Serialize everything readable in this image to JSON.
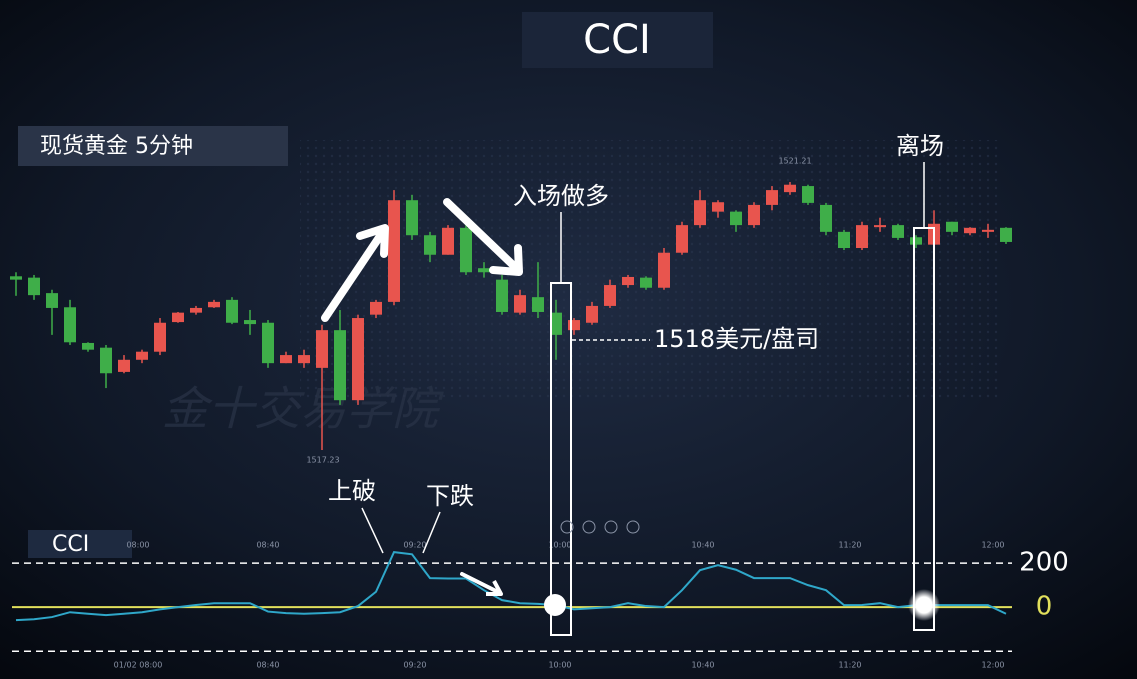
{
  "chart_data": [
    {
      "type": "candlestick",
      "title": "CCI",
      "subtitle": "现货黄金 5分钟",
      "open": [
        1519.81,
        1519.79,
        1519.56,
        1519.35,
        1518.82,
        1518.75,
        1518.39,
        1518.57,
        1518.69,
        1519.13,
        1519.27,
        1519.35,
        1519.46,
        1519.16,
        1519.12,
        1518.52,
        1518.52,
        1518.45,
        1519.01,
        1517.97,
        1519.24,
        1519.43,
        1520.94,
        1520.42,
        1520.13,
        1520.53,
        1519.93,
        1519.76,
        1519.27,
        1519.5,
        1519.27,
        1519.01,
        1519.12,
        1519.37,
        1519.68,
        1519.79,
        1519.64,
        1520.16,
        1520.57,
        1520.77,
        1520.77,
        1520.57,
        1520.87,
        1521.06,
        1521.15,
        1520.87,
        1520.47,
        1520.23,
        1520.54,
        1520.57,
        1520.39,
        1520.28,
        1520.62,
        1520.45,
        1520.47,
        1520.53
      ],
      "high": [
        1519.87,
        1519.83,
        1519.61,
        1519.46,
        1518.83,
        1518.79,
        1518.64,
        1518.72,
        1519.19,
        1519.28,
        1519.37,
        1519.46,
        1519.5,
        1519.31,
        1519.16,
        1518.69,
        1518.72,
        1519.09,
        1519.31,
        1519.24,
        1519.46,
        1521.09,
        1521.02,
        1520.47,
        1520.57,
        1520.57,
        1520.02,
        1519.83,
        1519.61,
        1520.02,
        1519.46,
        1519.19,
        1519.43,
        1519.76,
        1519.83,
        1519.81,
        1520.23,
        1520.62,
        1521.09,
        1520.94,
        1520.79,
        1520.91,
        1521.15,
        1521.21,
        1521.17,
        1520.9,
        1520.5,
        1520.62,
        1520.68,
        1520.59,
        1520.42,
        1520.79,
        1520.62,
        1520.54,
        1520.59,
        1520.54
      ],
      "low": [
        1519.52,
        1519.46,
        1518.94,
        1518.79,
        1518.69,
        1518.15,
        1518.37,
        1518.52,
        1518.64,
        1519.12,
        1519.24,
        1519.34,
        1519.1,
        1518.94,
        1518.45,
        1518.52,
        1518.45,
        1517.23,
        1517.9,
        1517.9,
        1519.19,
        1519.38,
        1520.35,
        1520.02,
        1520.13,
        1519.83,
        1519.79,
        1519.24,
        1519.24,
        1519.19,
        1518.57,
        1518.94,
        1519.09,
        1519.34,
        1519.64,
        1519.61,
        1519.61,
        1520.13,
        1520.53,
        1520.68,
        1520.47,
        1520.53,
        1520.79,
        1521.02,
        1520.87,
        1520.42,
        1520.2,
        1520.2,
        1520.47,
        1520.35,
        1520.23,
        1520.23,
        1520.42,
        1520.42,
        1520.38,
        1520.29
      ],
      "close": [
        1519.76,
        1519.53,
        1519.34,
        1518.83,
        1518.72,
        1518.37,
        1518.57,
        1518.69,
        1519.12,
        1519.27,
        1519.34,
        1519.43,
        1519.12,
        1519.1,
        1518.52,
        1518.64,
        1518.64,
        1519.01,
        1517.97,
        1519.19,
        1519.43,
        1520.94,
        1520.42,
        1520.13,
        1520.53,
        1519.87,
        1519.87,
        1519.28,
        1519.53,
        1519.28,
        1518.94,
        1519.16,
        1519.37,
        1519.68,
        1519.8,
        1519.64,
        1520.16,
        1520.57,
        1520.94,
        1520.91,
        1520.57,
        1520.87,
        1521.09,
        1521.17,
        1520.9,
        1520.47,
        1520.23,
        1520.57,
        1520.57,
        1520.38,
        1520.28,
        1520.59,
        1520.47,
        1520.53,
        1520.5,
        1520.32
      ],
      "up_color": "#e8554e",
      "down_color": "#3fae49",
      "ylim": [
        1517,
        1521.5
      ],
      "extreme_labels": {
        "high": "1521.21",
        "low": "1517.23"
      },
      "x_labels": [
        "08:00",
        "08:40",
        "09:20",
        "10:00",
        "10:40",
        "11:20",
        "12:00"
      ],
      "annotations": {
        "entry": "入场做多",
        "exit": "离场",
        "break_up": "上破",
        "fall": "下跌",
        "price": "1518美元/盘司",
        "watermark": "金十交易学院"
      }
    },
    {
      "type": "line",
      "name": "CCI",
      "color": "#2fa7c9",
      "values": [
        -59,
        -55,
        -45,
        -23,
        -30,
        -36,
        -30,
        -23,
        -10,
        0,
        10,
        18,
        18,
        18,
        -20,
        -27,
        -30,
        -27,
        -23,
        5,
        70,
        250,
        240,
        132,
        130,
        130,
        77,
        32,
        18,
        15,
        9,
        -10,
        -5,
        0,
        18,
        5,
        0,
        77,
        168,
        191,
        170,
        132,
        132,
        132,
        100,
        77,
        9,
        10,
        18,
        0,
        9,
        9,
        9,
        9,
        9,
        -30
      ],
      "ylim": [
        -240,
        305
      ],
      "yticks": [
        200,
        0
      ],
      "levels": [
        -200
      ],
      "zero_color": "#e2e05c",
      "x_labels": [
        "01/02 08:00",
        "08:40",
        "09:20",
        "10:00",
        "10:40",
        "11:20",
        "12:00"
      ]
    }
  ]
}
